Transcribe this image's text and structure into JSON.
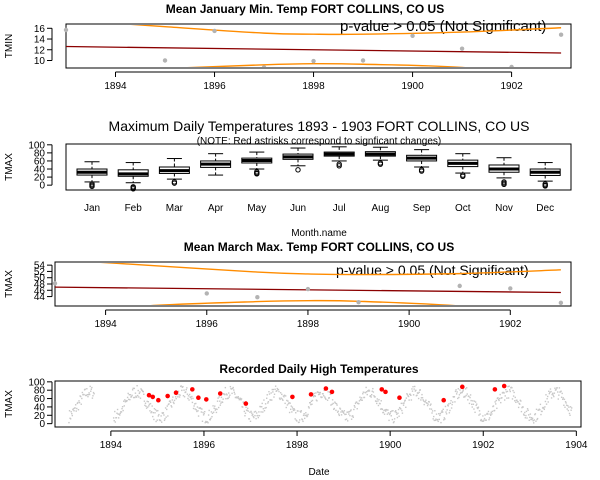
{
  "chart_data": [
    {
      "type": "scatter",
      "title": "Mean January Min. Temp FORT COLLINS, CO US",
      "ylabel": "TMIN",
      "xlabel": "",
      "xlim": [
        1893,
        1903.2
      ],
      "ylim": [
        8.6,
        16.8
      ],
      "x_ticks": [
        "1894",
        "1896",
        "1898",
        "1900",
        "1902"
      ],
      "y_ticks": [
        "10",
        "12",
        "14",
        "16"
      ],
      "annotation": "p-value > 0.05 (Not Significant)",
      "colors": {
        "points": "#b3b3b3",
        "trend": "#8b0000",
        "band": "#ff8c00"
      },
      "points": [
        {
          "x": 1893.0,
          "y": 15.7
        },
        {
          "x": 1895.0,
          "y": 10.0
        },
        {
          "x": 1896.0,
          "y": 15.5
        },
        {
          "x": 1897.0,
          "y": 8.7
        },
        {
          "x": 1898.0,
          "y": 9.9
        },
        {
          "x": 1899.0,
          "y": 10.0
        },
        {
          "x": 1900.0,
          "y": 14.6
        },
        {
          "x": 1901.0,
          "y": 12.2
        },
        {
          "x": 1902.0,
          "y": 8.8
        },
        {
          "x": 1903.0,
          "y": 14.8
        }
      ],
      "trend": [
        {
          "x": 1893.0,
          "y": 12.6
        },
        {
          "x": 1903.0,
          "y": 11.4
        }
      ],
      "upper_band": [
        {
          "x": 1893.0,
          "y": 17.6
        },
        {
          "x": 1895.0,
          "y": 16.3
        },
        {
          "x": 1897.0,
          "y": 15.1
        },
        {
          "x": 1898.0,
          "y": 14.9
        },
        {
          "x": 1899.0,
          "y": 14.9
        },
        {
          "x": 1901.0,
          "y": 15.3
        },
        {
          "x": 1903.0,
          "y": 16.1
        }
      ],
      "lower_band": [
        {
          "x": 1893.0,
          "y": 7.9
        },
        {
          "x": 1895.0,
          "y": 8.5
        },
        {
          "x": 1897.0,
          "y": 9.2
        },
        {
          "x": 1898.0,
          "y": 9.4
        },
        {
          "x": 1899.0,
          "y": 9.3
        },
        {
          "x": 1901.0,
          "y": 8.7
        },
        {
          "x": 1903.0,
          "y": 6.7
        }
      ]
    },
    {
      "type": "box",
      "title": "Maximum Daily Temperatures 1893 - 1903 FORT COLLINS, CO US",
      "subtitle": "(NOTE: Red astrisks correspond to signficant changes)",
      "ylabel": "TMAX",
      "xlabel": "Month.name",
      "ylim": [
        -12,
        102
      ],
      "y_ticks": [
        "0",
        "20",
        "40",
        "60",
        "80",
        "100"
      ],
      "categories": [
        "Jan",
        "Feb",
        "Mar",
        "Apr",
        "May",
        "Jun",
        "Jul",
        "Aug",
        "Sep",
        "Oct",
        "Nov",
        "Dec"
      ],
      "boxes": [
        {
          "min": 8,
          "q1": 25,
          "median": 32,
          "q3": 40,
          "max": 58,
          "outliers": [
            0,
            -3,
            3
          ]
        },
        {
          "min": 6,
          "q1": 22,
          "median": 28,
          "q3": 38,
          "max": 56,
          "outliers": [
            -6,
            -9,
            -4
          ]
        },
        {
          "min": 15,
          "q1": 29,
          "median": 36,
          "q3": 45,
          "max": 66,
          "outliers": [
            5,
            8
          ]
        },
        {
          "min": 25,
          "q1": 44,
          "median": 52,
          "q3": 60,
          "max": 78,
          "outliers": []
        },
        {
          "min": 40,
          "q1": 55,
          "median": 61,
          "q3": 67,
          "max": 82,
          "outliers": [
            30,
            28,
            33
          ]
        },
        {
          "min": 48,
          "q1": 64,
          "median": 70,
          "q3": 77,
          "max": 92,
          "outliers": [
            38
          ]
        },
        {
          "min": 60,
          "q1": 72,
          "median": 77,
          "q3": 82,
          "max": 95,
          "outliers": [
            48,
            52
          ]
        },
        {
          "min": 62,
          "q1": 72,
          "median": 77,
          "q3": 83,
          "max": 94,
          "outliers": [
            55,
            52
          ]
        },
        {
          "min": 45,
          "q1": 60,
          "median": 67,
          "q3": 74,
          "max": 88,
          "outliers": [
            35,
            38
          ]
        },
        {
          "min": 30,
          "q1": 46,
          "median": 54,
          "q3": 62,
          "max": 78,
          "outliers": [
            22,
            25
          ]
        },
        {
          "min": 18,
          "q1": 32,
          "median": 40,
          "q3": 50,
          "max": 68,
          "outliers": [
            5,
            8,
            2
          ]
        },
        {
          "min": 10,
          "q1": 24,
          "median": 32,
          "q3": 40,
          "max": 56,
          "outliers": [
            -2,
            0,
            3
          ]
        }
      ]
    },
    {
      "type": "scatter",
      "title": "Mean March Max. Temp FORT COLLINS, CO US",
      "ylabel": "TMAX",
      "xlabel": "",
      "xlim": [
        1893,
        1903.2
      ],
      "ylim": [
        41,
        55
      ],
      "x_ticks": [
        "1894",
        "1896",
        "1898",
        "1900",
        "1902"
      ],
      "y_ticks": [
        "44",
        "46",
        "48",
        "50",
        "52",
        "54"
      ],
      "annotation": "p-value > 0.05 (Not Significant)",
      "colors": {
        "points": "#b3b3b3",
        "trend": "#8b0000",
        "band": "#ff8c00"
      },
      "points": [
        {
          "x": 1893.0,
          "y": 48.2
        },
        {
          "x": 1896.0,
          "y": 45.0
        },
        {
          "x": 1897.0,
          "y": 43.8
        },
        {
          "x": 1898.0,
          "y": 46.4
        },
        {
          "x": 1899.0,
          "y": 42.2
        },
        {
          "x": 1901.0,
          "y": 47.4
        },
        {
          "x": 1902.0,
          "y": 46.6
        },
        {
          "x": 1903.0,
          "y": 42.0
        }
      ],
      "trend": [
        {
          "x": 1893.0,
          "y": 47.0
        },
        {
          "x": 1903.0,
          "y": 45.3
        }
      ],
      "upper_band": [
        {
          "x": 1893.0,
          "y": 55.8
        },
        {
          "x": 1895.0,
          "y": 53.8
        },
        {
          "x": 1897.0,
          "y": 51.8
        },
        {
          "x": 1898.0,
          "y": 51.2
        },
        {
          "x": 1899.0,
          "y": 51.0
        },
        {
          "x": 1901.0,
          "y": 51.3
        },
        {
          "x": 1903.0,
          "y": 52.5
        }
      ],
      "lower_band": [
        {
          "x": 1893.0,
          "y": 38.8
        },
        {
          "x": 1895.0,
          "y": 41.2
        },
        {
          "x": 1897.0,
          "y": 42.4
        },
        {
          "x": 1898.0,
          "y": 42.7
        },
        {
          "x": 1899.0,
          "y": 42.5
        },
        {
          "x": 1901.0,
          "y": 41.0
        },
        {
          "x": 1903.0,
          "y": 37.8
        }
      ]
    },
    {
      "type": "scatter",
      "title": "Recorded Daily High Temperatures",
      "ylabel": "TMAX",
      "xlabel": "Date",
      "xlim": [
        1892.8,
        1904.1
      ],
      "ylim": [
        -8,
        102
      ],
      "x_ticks": [
        "1894",
        "1896",
        "1898",
        "1900",
        "1902",
        "1904"
      ],
      "y_ticks": [
        "0",
        "20",
        "40",
        "60",
        "80",
        "100"
      ],
      "colors": {
        "points": "#c8c8c8",
        "significant": "#ff0000"
      },
      "gaps": [
        [
          1893.65,
          1894.05
        ]
      ],
      "significant_points": [
        {
          "x": 1894.82,
          "y": 68
        },
        {
          "x": 1894.9,
          "y": 64
        },
        {
          "x": 1895.02,
          "y": 56
        },
        {
          "x": 1895.22,
          "y": 66
        },
        {
          "x": 1895.4,
          "y": 74
        },
        {
          "x": 1895.75,
          "y": 82
        },
        {
          "x": 1895.88,
          "y": 62
        },
        {
          "x": 1896.05,
          "y": 58
        },
        {
          "x": 1896.35,
          "y": 72
        },
        {
          "x": 1896.9,
          "y": 48
        },
        {
          "x": 1897.9,
          "y": 64
        },
        {
          "x": 1898.3,
          "y": 70
        },
        {
          "x": 1898.62,
          "y": 84
        },
        {
          "x": 1898.75,
          "y": 76
        },
        {
          "x": 1899.82,
          "y": 82
        },
        {
          "x": 1899.9,
          "y": 76
        },
        {
          "x": 1900.2,
          "y": 62
        },
        {
          "x": 1901.15,
          "y": 56
        },
        {
          "x": 1901.55,
          "y": 88
        },
        {
          "x": 1902.25,
          "y": 82
        },
        {
          "x": 1902.45,
          "y": 90
        }
      ]
    }
  ]
}
